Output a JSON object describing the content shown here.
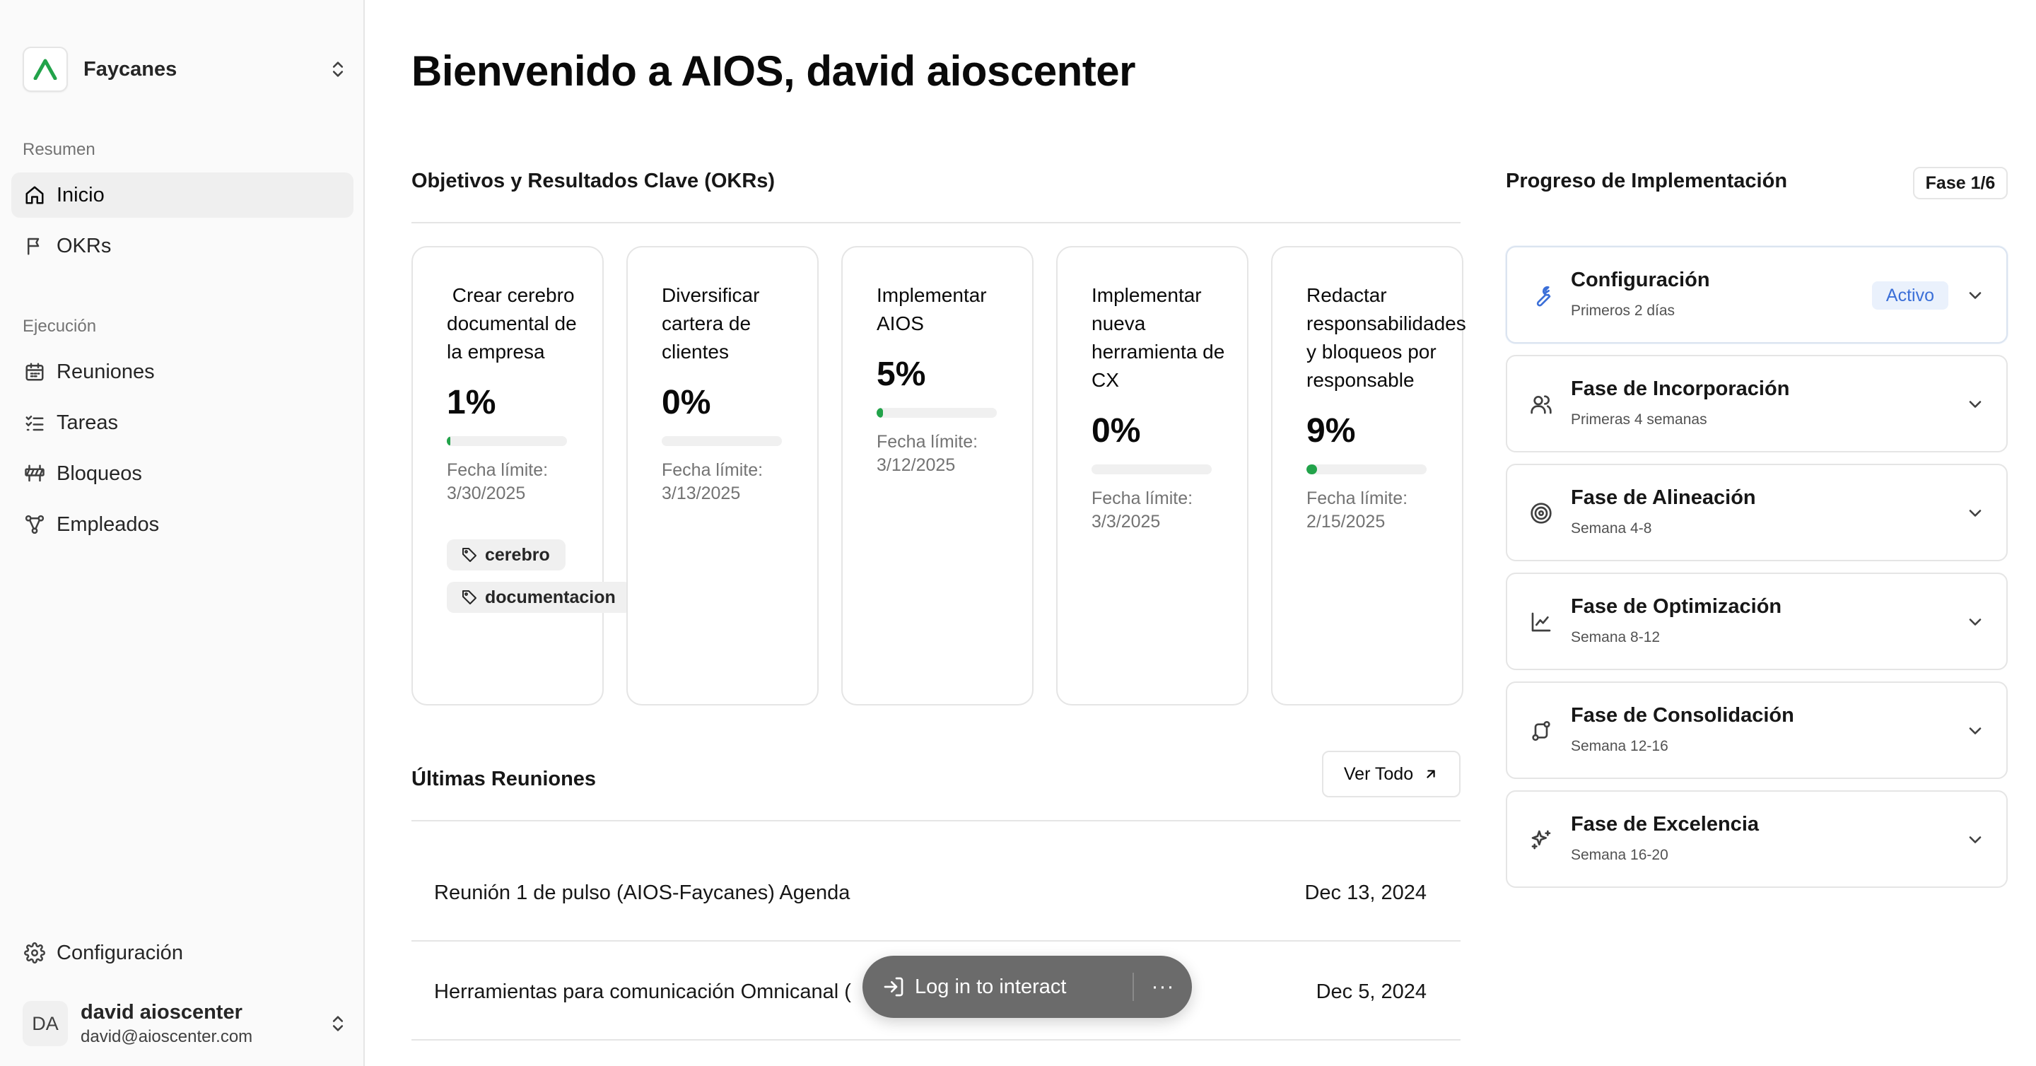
{
  "sidebar": {
    "org_name": "Faycanes",
    "group_resumen": "Resumen",
    "group_ejecucion": "Ejecución",
    "items": [
      {
        "label": "Inicio",
        "icon": "home-icon"
      },
      {
        "label": "OKRs",
        "icon": "flag-icon"
      },
      {
        "label": "Reuniones",
        "icon": "calendar-icon"
      },
      {
        "label": "Tareas",
        "icon": "list-checks-icon"
      },
      {
        "label": "Bloqueos",
        "icon": "barrier-icon"
      },
      {
        "label": "Empleados",
        "icon": "network-icon"
      }
    ],
    "settings_label": "Configuración",
    "user": {
      "initials": "DA",
      "name": "david aioscenter",
      "email": "david@aioscenter.com"
    }
  },
  "main": {
    "title": "Bienvenido a AIOS, david aioscenter",
    "okr_section_title": "Objetivos y Resultados Clave (OKRs)",
    "okrs": [
      {
        "title": " Crear cerebro documental de la empresa",
        "percent": "1%",
        "progress": 0.01,
        "deadline": "Fecha límite: 3/30/2025",
        "tags": [
          "cerebro",
          "documentacion"
        ]
      },
      {
        "title": "Diversificar cartera de clientes",
        "percent": "0%",
        "progress": 0,
        "deadline": "Fecha límite: 3/13/2025",
        "tags": []
      },
      {
        "title": "Implementar AIOS",
        "percent": "5%",
        "progress": 0.05,
        "deadline": "Fecha límite: 3/12/2025",
        "tags": []
      },
      {
        "title": "Implementar nueva herramienta de CX",
        "percent": "0%",
        "progress": 0,
        "deadline": "Fecha límite: 3/3/2025",
        "tags": []
      },
      {
        "title": "Redactar responsabilidades y bloqueos por responsable",
        "percent": "9%",
        "progress": 0.09,
        "deadline": "Fecha límite: 2/15/2025",
        "tags": []
      }
    ],
    "meetings_title": "Últimas Reuniones",
    "view_all_label": "Ver Todo",
    "meetings": [
      {
        "title": "Reunión 1 de pulso (AIOS-Faycanes) Agenda",
        "date": "Dec 13, 2024"
      },
      {
        "title": "Herramientas para comunicación Omnicanal (",
        "date": "Dec 5, 2024"
      }
    ]
  },
  "implementation": {
    "title": "Progreso de Implementación",
    "phase_badge": "Fase 1/6",
    "phases": [
      {
        "name": "Configuración",
        "sub": "Primeros 2 días",
        "badge": "Activo",
        "icon": "wrench-icon"
      },
      {
        "name": "Fase de Incorporación",
        "sub": "Primeras 4 semanas",
        "icon": "users-icon"
      },
      {
        "name": "Fase de Alineación",
        "sub": "Semana 4-8",
        "icon": "target-icon"
      },
      {
        "name": "Fase de Optimización",
        "sub": "Semana 8-12",
        "icon": "line-chart-icon"
      },
      {
        "name": "Fase de Consolidación",
        "sub": "Semana 12-16",
        "icon": "route-icon"
      },
      {
        "name": "Fase de Excelencia",
        "sub": "Semana 16-20",
        "icon": "sparkles-icon"
      }
    ]
  },
  "toast": {
    "label": "Log in to interact",
    "more": "···"
  },
  "colors": {
    "brand": "#22a34a",
    "accent": "#3b6fd8",
    "accent_bg": "#eaf1fc",
    "border": "#e5e5e5"
  }
}
